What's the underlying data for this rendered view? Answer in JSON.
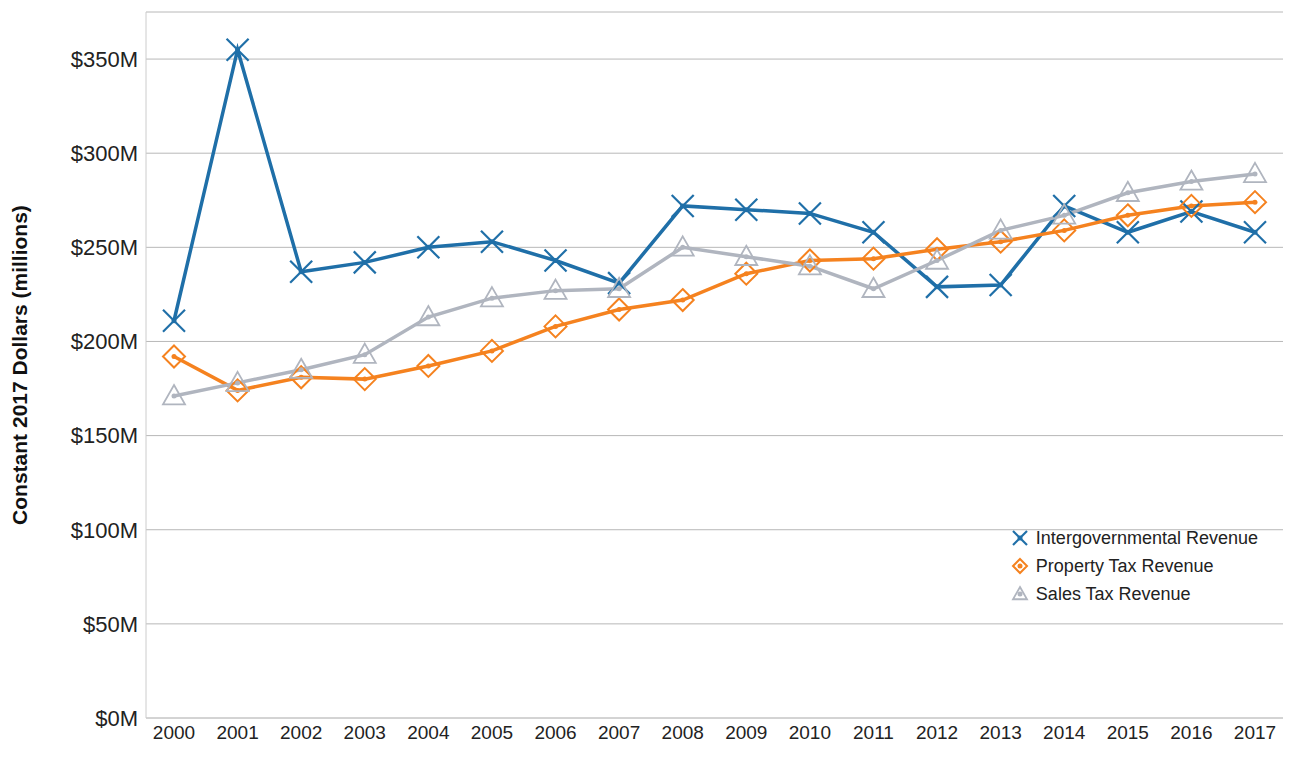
{
  "chart_data": {
    "type": "line",
    "y_label": "Constant 2017 Dollars (millions)",
    "categories": [
      "2000",
      "2001",
      "2002",
      "2003",
      "2004",
      "2005",
      "2006",
      "2007",
      "2008",
      "2009",
      "2010",
      "2011",
      "2012",
      "2013",
      "2014",
      "2015",
      "2016",
      "2017"
    ],
    "series": [
      {
        "name": "Intergovernmental Revenue",
        "color": "#1f6fa8",
        "marker": "x",
        "values": [
          211,
          355,
          237,
          242,
          250,
          253,
          243,
          231,
          272,
          270,
          268,
          258,
          229,
          230,
          272,
          258,
          269,
          258
        ]
      },
      {
        "name": "Property Tax Revenue",
        "color": "#f5821f",
        "marker": "diamond",
        "values": [
          192,
          174,
          181,
          180,
          187,
          195,
          208,
          217,
          222,
          236,
          243,
          244,
          249,
          253,
          259,
          267,
          272,
          274
        ]
      },
      {
        "name": "Sales Tax Revenue",
        "color": "#b0b5bf",
        "marker": "triangle",
        "values": [
          171,
          178,
          185,
          193,
          213,
          223,
          227,
          228,
          250,
          245,
          240,
          228,
          243,
          259,
          267,
          279,
          285,
          289
        ]
      }
    ],
    "ylim": [
      0,
      375
    ],
    "yticks": [
      {
        "value": 0,
        "label": "$0M"
      },
      {
        "value": 50,
        "label": "$50M"
      },
      {
        "value": 100,
        "label": "$100M"
      },
      {
        "value": 150,
        "label": "$150M"
      },
      {
        "value": 200,
        "label": "$200M"
      },
      {
        "value": 250,
        "label": "$250M"
      },
      {
        "value": 300,
        "label": "$300M"
      },
      {
        "value": 350,
        "label": "$350M"
      }
    ],
    "grid": true,
    "legend": "lower right"
  }
}
